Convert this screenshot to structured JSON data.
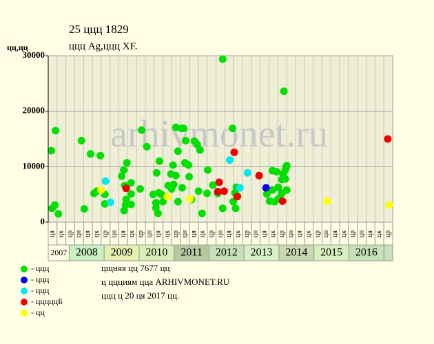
{
  "chart_data": {
    "type": "scatter",
    "title": "25 ццц 1829",
    "subtitle": "ццц Ag,ццц XF.",
    "y_label": "цц,цц",
    "watermark": "arhivmonet.ru",
    "notes": [
      "цщняя цц 7677 цц",
      "ц ццциям цца ARHIVMONET.RU",
      "ццц ц 20 ця 2017 цц."
    ],
    "xlim": [
      2007.4,
      2017.25
    ],
    "ylim": [
      0,
      30000
    ],
    "yticks": [
      0,
      10000,
      20000,
      30000
    ],
    "grid": true,
    "year_bands": [
      2007,
      2008,
      2009,
      2010,
      2011,
      2012,
      2013,
      2014,
      2015,
      2016
    ],
    "quarters": [
      "ця",
      "цк",
      "цр",
      "цн",
      "ця",
      "цк",
      "цр",
      "цн",
      "ця",
      "цк",
      "цр",
      "цн",
      "ця",
      "цк",
      "цр",
      "цн",
      "ця",
      "цк",
      "цр",
      "цн",
      "ця",
      "цк",
      "цр",
      "цн",
      "ця",
      "цк",
      "цр",
      "цн",
      "ця",
      "цк",
      "цр",
      "цн",
      "ця",
      "цк",
      "цр",
      "цн",
      "ця",
      "цк",
      "цр"
    ],
    "series": [
      {
        "name": "- ццц",
        "color": "#00e000",
        "x": [
          2007.49,
          2007.61,
          2007.51,
          2007.59,
          2007.69,
          2008.35,
          2008.43,
          2008.61,
          2008.71,
          2008.79,
          2008.89,
          2009.02,
          2009.02,
          2009.5,
          2009.56,
          2009.65,
          2009.59,
          2009.63,
          2009.61,
          2009.57,
          2009.77,
          2009.77,
          2009.77,
          2010.03,
          2010.07,
          2010.22,
          2010.4,
          2010.5,
          2010.58,
          2010.56,
          2010.64,
          2010.48,
          2010.48,
          2010.54,
          2010.68,
          2010.83,
          2010.91,
          2010.97,
          2010.99,
          2010.93,
          2011.05,
          2011.11,
          2011.05,
          2011.11,
          2011.21,
          2011.27,
          2011.23,
          2011.33,
          2011.31,
          2011.41,
          2011.43,
          2011.5,
          2011.58,
          2011.66,
          2011.74,
          2011.7,
          2011.8,
          2011.96,
          2011.94,
          2012.11,
          2012.25,
          2012.39,
          2012.39,
          2012.67,
          2012.69,
          2012.74,
          2012.78,
          2012.82,
          2012.76,
          2013.65,
          2013.73,
          2013.81,
          2013.81,
          2013.87,
          2013.93,
          2013.98,
          2013.98,
          2014.08,
          2014.08,
          2014.14,
          2014.18,
          2014.2,
          2014.12,
          2014.18,
          2014.22,
          2014.22
        ],
        "values": [
          12900,
          16500,
          2500,
          3100,
          1500,
          14700,
          2400,
          12300,
          5200,
          5600,
          12000,
          5000,
          3300,
          8300,
          9400,
          10700,
          6600,
          4100,
          3100,
          2100,
          7100,
          5100,
          3200,
          6000,
          16600,
          13600,
          5000,
          8900,
          11000,
          5300,
          5000,
          3500,
          2600,
          1600,
          3700,
          6600,
          8700,
          10300,
          6800,
          6000,
          17100,
          12800,
          8400,
          3700,
          16900,
          16900,
          6200,
          14700,
          10700,
          10300,
          8200,
          4100,
          14600,
          14000,
          13000,
          5600,
          1600,
          9400,
          5200,
          6700,
          5200,
          29400,
          2500,
          16900,
          3700,
          5300,
          6300,
          4700,
          2500,
          5100,
          3800,
          5800,
          9300,
          3700,
          9100,
          4200,
          6300,
          5200,
          7700,
          23600,
          9400,
          9900,
          8700,
          7800,
          5800,
          10200
        ]
      },
      {
        "name": "- ццц",
        "color": "#0000e0",
        "x": [
          2013.63
        ],
        "values": [
          6200
        ]
      },
      {
        "name": "- ццц",
        "color": "#00e8f0",
        "x": [
          2009.04,
          2009.18,
          2012.59,
          2012.88,
          2013.1
        ],
        "values": [
          7400,
          3600,
          11200,
          6200,
          8900
        ]
      },
      {
        "name": "- цццццБ",
        "color": "#f00000",
        "x": [
          2009.63,
          2012.29,
          2012.25,
          2012.43,
          2012.72,
          2012.8,
          2013.43,
          2014.1,
          2017.11
        ],
        "values": [
          6100,
          7200,
          5500,
          5600,
          12600,
          4600,
          8400,
          3800,
          15000
        ]
      },
      {
        "name": "- цц",
        "color": "#ffff00",
        "x": [
          2008.91,
          2010.81,
          2011.46,
          2015.38,
          2017.15
        ],
        "values": [
          5800,
          4600,
          4200,
          3800,
          3100
        ]
      }
    ]
  }
}
